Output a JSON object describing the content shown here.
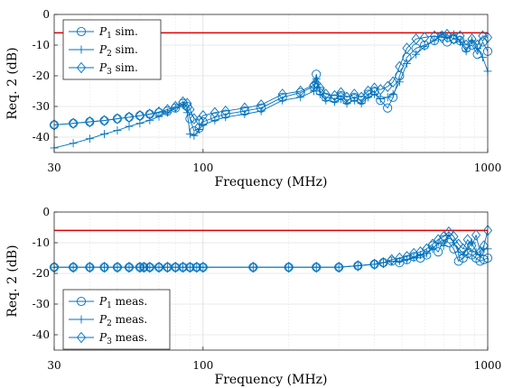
{
  "chart_data": [
    {
      "type": "line",
      "xlabel": "Frequency (MHz)",
      "ylabel": "Req. 2 (dB)",
      "xscale": "log",
      "xlim": [
        30,
        1000
      ],
      "ylim": [
        -45,
        0
      ],
      "xticks": [
        30,
        100,
        1000
      ],
      "xtick_labels": [
        "30",
        "100",
        "1000"
      ],
      "yticks": [
        0,
        -10,
        -20,
        -30,
        -40
      ],
      "ytick_labels": [
        "0",
        "-10",
        "-20",
        "-30",
        "-40"
      ],
      "grid": true,
      "legend": "top-left",
      "line_color": "#0072BD",
      "limit": {
        "value": -6,
        "color": "#E00000"
      },
      "series": [
        {
          "name": "P1 sim.",
          "label_main": "P",
          "label_sub": "1",
          "label_rest": " sim.",
          "marker": "circle",
          "x": [
            30,
            35,
            40,
            45,
            50,
            55,
            60,
            65,
            70,
            75,
            80,
            85,
            88,
            90,
            93,
            97,
            100,
            110,
            120,
            140,
            160,
            190,
            220,
            245,
            250,
            258,
            270,
            290,
            305,
            320,
            340,
            360,
            380,
            400,
            420,
            445,
            465,
            490,
            520,
            560,
            600,
            650,
            690,
            720,
            760,
            800,
            840,
            880,
            920,
            960,
            1000
          ],
          "y": [
            -36,
            -35.5,
            -35,
            -34.6,
            -34,
            -33.5,
            -33,
            -32.5,
            -32,
            -31.5,
            -30.5,
            -29,
            -30,
            -34,
            -38,
            -37,
            -35,
            -33.5,
            -32.5,
            -31.5,
            -30.5,
            -27,
            -25.5,
            -23.5,
            -19.5,
            -25,
            -27,
            -27.5,
            -26.5,
            -28,
            -27,
            -28,
            -26,
            -25,
            -28,
            -30.5,
            -27,
            -20,
            -14,
            -11,
            -10,
            -8.5,
            -7,
            -9,
            -8,
            -8.5,
            -11,
            -10,
            -13,
            -9,
            -12
          ]
        },
        {
          "name": "P2 sim.",
          "label_main": "P",
          "label_sub": "2",
          "label_rest": " sim.",
          "marker": "plus",
          "x": [
            30,
            35,
            40,
            45,
            50,
            55,
            60,
            65,
            70,
            75,
            80,
            85,
            88,
            90,
            93,
            97,
            100,
            110,
            120,
            140,
            160,
            190,
            220,
            245,
            250,
            258,
            270,
            290,
            305,
            320,
            340,
            360,
            380,
            400,
            420,
            445,
            465,
            490,
            520,
            560,
            600,
            650,
            690,
            720,
            760,
            800,
            840,
            880,
            920,
            960,
            1000
          ],
          "y": [
            -43.5,
            -42,
            -40.5,
            -39,
            -37.8,
            -36.5,
            -35.5,
            -34.5,
            -33.3,
            -32,
            -30.5,
            -29.5,
            -32,
            -39,
            -39.5,
            -37.5,
            -36,
            -34.5,
            -33.5,
            -32.5,
            -31.5,
            -28,
            -27,
            -25,
            -21,
            -26,
            -28,
            -28.5,
            -27.5,
            -29,
            -28,
            -29,
            -27,
            -26,
            -27.5,
            -27,
            -26,
            -22,
            -16,
            -13,
            -10.5,
            -8.5,
            -6.5,
            -7.5,
            -6.5,
            -9,
            -12,
            -8.5,
            -11,
            -14,
            -18.5
          ]
        },
        {
          "name": "P3 sim.",
          "label_main": "P",
          "label_sub": "3",
          "label_rest": " sim.",
          "marker": "diamond",
          "x": [
            30,
            35,
            40,
            45,
            50,
            55,
            60,
            65,
            70,
            75,
            80,
            85,
            88,
            90,
            93,
            97,
            100,
            110,
            120,
            140,
            160,
            190,
            220,
            245,
            250,
            258,
            270,
            290,
            305,
            320,
            340,
            360,
            380,
            400,
            420,
            445,
            465,
            490,
            520,
            560,
            600,
            650,
            690,
            720,
            760,
            800,
            840,
            880,
            920,
            960,
            1000
          ],
          "y": [
            -36,
            -35.5,
            -35,
            -34.6,
            -34,
            -33.5,
            -33,
            -32.5,
            -31.8,
            -31,
            -30,
            -28.5,
            -29,
            -31,
            -34,
            -34.5,
            -33,
            -32,
            -31.5,
            -30.5,
            -29.5,
            -26,
            -25,
            -23,
            -22.5,
            -24,
            -26,
            -26.5,
            -25.5,
            -27,
            -26,
            -27,
            -25,
            -24,
            -24.5,
            -23.5,
            -22,
            -17,
            -11,
            -8,
            -7.5,
            -7,
            -7.5,
            -6.5,
            -8,
            -7,
            -10,
            -8,
            -10,
            -7,
            -7.5
          ]
        }
      ]
    },
    {
      "type": "line",
      "xlabel": "Frequency (MHz)",
      "ylabel": "Req. 2 (dB)",
      "xscale": "log",
      "xlim": [
        30,
        1000
      ],
      "ylim": [
        -45,
        0
      ],
      "xticks": [
        30,
        100,
        1000
      ],
      "xtick_labels": [
        "30",
        "100",
        "1000"
      ],
      "yticks": [
        0,
        -10,
        -20,
        -30,
        -40
      ],
      "ytick_labels": [
        "0",
        "-10",
        "-20",
        "-30",
        "-40"
      ],
      "grid": true,
      "legend": "bottom-left",
      "line_color": "#0072BD",
      "limit": {
        "value": -6,
        "color": "#E00000"
      },
      "series": [
        {
          "name": "P1 meas.",
          "label_main": "P",
          "label_sub": "1",
          "label_rest": " meas.",
          "marker": "circle",
          "x": [
            30,
            35,
            40,
            45,
            50,
            55,
            60,
            62,
            65,
            70,
            75,
            80,
            85,
            90,
            95,
            100,
            150,
            200,
            250,
            300,
            350,
            400,
            430,
            460,
            490,
            520,
            550,
            580,
            610,
            640,
            670,
            700,
            730,
            760,
            790,
            820,
            850,
            880,
            910,
            940,
            970,
            1000
          ],
          "y": [
            -18,
            -18,
            -18,
            -18,
            -18,
            -18,
            -18,
            -18,
            -18,
            -18,
            -18,
            -18,
            -18,
            -18,
            -18,
            -18,
            -18,
            -18,
            -18,
            -18,
            -17.5,
            -17,
            -16.5,
            -16,
            -16.5,
            -15.5,
            -14.5,
            -15,
            -14,
            -11,
            -13,
            -9,
            -10,
            -12,
            -16,
            -15,
            -13.5,
            -14,
            -15,
            -16,
            -15.5,
            -15
          ]
        },
        {
          "name": "P2 meas.",
          "label_main": "P",
          "label_sub": "2",
          "label_rest": " meas.",
          "marker": "plus",
          "x": [
            30,
            35,
            40,
            45,
            50,
            55,
            60,
            62,
            65,
            70,
            75,
            80,
            85,
            90,
            95,
            100,
            150,
            200,
            250,
            300,
            350,
            400,
            430,
            460,
            490,
            520,
            550,
            580,
            610,
            640,
            670,
            700,
            730,
            760,
            790,
            820,
            850,
            880,
            910,
            940,
            970,
            1000
          ],
          "y": [
            -18,
            -18,
            -18,
            -18,
            -18,
            -18,
            -18,
            -18,
            -18,
            -18,
            -18,
            -18,
            -18,
            -18,
            -18,
            -18,
            -18,
            -18,
            -18,
            -18,
            -17.5,
            -17,
            -16.5,
            -16,
            -16,
            -15.5,
            -15,
            -14,
            -13.5,
            -12,
            -10,
            -11,
            -7.5,
            -10,
            -13,
            -14,
            -12,
            -10,
            -13,
            -14,
            -12,
            -12
          ]
        },
        {
          "name": "P3 meas.",
          "label_main": "P",
          "label_sub": "3",
          "label_rest": " meas.",
          "marker": "diamond",
          "x": [
            30,
            35,
            40,
            45,
            50,
            55,
            60,
            62,
            65,
            70,
            75,
            80,
            85,
            90,
            95,
            100,
            150,
            200,
            250,
            300,
            350,
            400,
            430,
            460,
            490,
            520,
            550,
            580,
            610,
            640,
            670,
            700,
            730,
            760,
            790,
            820,
            850,
            880,
            910,
            940,
            970,
            1000
          ],
          "y": [
            -18,
            -18,
            -18,
            -18,
            -18,
            -18,
            -18,
            -18,
            -18,
            -18,
            -18,
            -18,
            -18,
            -18,
            -18,
            -18,
            -18,
            -18,
            -18,
            -18,
            -17.5,
            -17,
            -16.5,
            -15.5,
            -15,
            -14.5,
            -13.5,
            -13,
            -12,
            -10.5,
            -9,
            -8,
            -6.5,
            -8,
            -10.5,
            -12,
            -9,
            -11,
            -7.5,
            -13,
            -11,
            -6
          ]
        }
      ]
    }
  ]
}
